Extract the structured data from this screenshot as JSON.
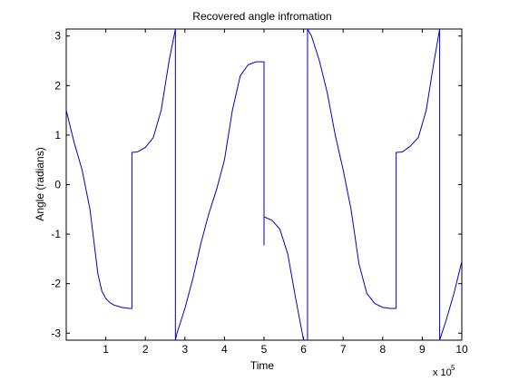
{
  "chart_data": {
    "type": "line",
    "title": "Recovered angle infromation",
    "xlabel": "Time",
    "ylabel": "Angle (radians)",
    "x_multiplier": "x 10",
    "x_multiplier_exp": "5",
    "xlim": [
      0,
      1000000
    ],
    "ylim": [
      -3.14159,
      3.14159
    ],
    "x_ticks": [
      100000,
      200000,
      300000,
      400000,
      500000,
      600000,
      700000,
      800000,
      900000,
      1000000
    ],
    "x_tick_labels": [
      "1",
      "2",
      "3",
      "4",
      "5",
      "6",
      "7",
      "8",
      "9",
      "10"
    ],
    "y_ticks": [
      3,
      2,
      1,
      0,
      -1,
      -2,
      -3
    ],
    "y_tick_labels": [
      "3",
      "2",
      "1",
      "0",
      "-1",
      "-2",
      "-3"
    ],
    "grid": false,
    "colors": {
      "line": "#0000c8",
      "axes": "#000000",
      "background": "#ffffff"
    },
    "series": [
      {
        "x": [
          0,
          20000,
          40000,
          60000,
          80000,
          90000,
          100000,
          110000,
          120000,
          140000,
          160000,
          166000,
          166000,
          180000,
          200000,
          220000,
          240000,
          260000,
          276000,
          276000,
          280000,
          300000,
          320000,
          340000,
          360000,
          380000,
          400000,
          420000,
          440000,
          460000,
          480000,
          500000,
          500000,
          500000,
          500000,
          520000,
          540000,
          560000,
          580000,
          600000,
          610000,
          610000,
          620000,
          640000,
          660000,
          680000,
          700000,
          720000,
          740000,
          760000,
          780000,
          800000,
          820000,
          834000,
          834000,
          850000,
          870000,
          890000,
          910000,
          930000,
          944000,
          944000,
          960000,
          980000,
          1000000
        ],
        "y": [
          1.5,
          0.85,
          0.3,
          -0.5,
          -1.8,
          -2.15,
          -2.3,
          -2.38,
          -2.43,
          -2.48,
          -2.5,
          -2.5,
          0.65,
          0.66,
          0.75,
          0.95,
          1.5,
          2.5,
          3.14,
          -3.14,
          -3.0,
          -2.5,
          -1.9,
          -1.2,
          -0.6,
          -0.1,
          0.5,
          1.5,
          2.2,
          2.42,
          2.48,
          2.48,
          -1.22,
          -0.65,
          -0.65,
          -0.72,
          -0.9,
          -1.4,
          -2.3,
          -3.14,
          -3.14,
          3.14,
          3.0,
          2.5,
          1.85,
          1.0,
          0.3,
          -0.5,
          -1.6,
          -2.2,
          -2.4,
          -2.48,
          -2.5,
          -2.5,
          0.65,
          0.66,
          0.78,
          0.95,
          1.5,
          2.5,
          3.14,
          -3.14,
          -2.75,
          -2.2,
          -1.55
        ]
      }
    ]
  }
}
